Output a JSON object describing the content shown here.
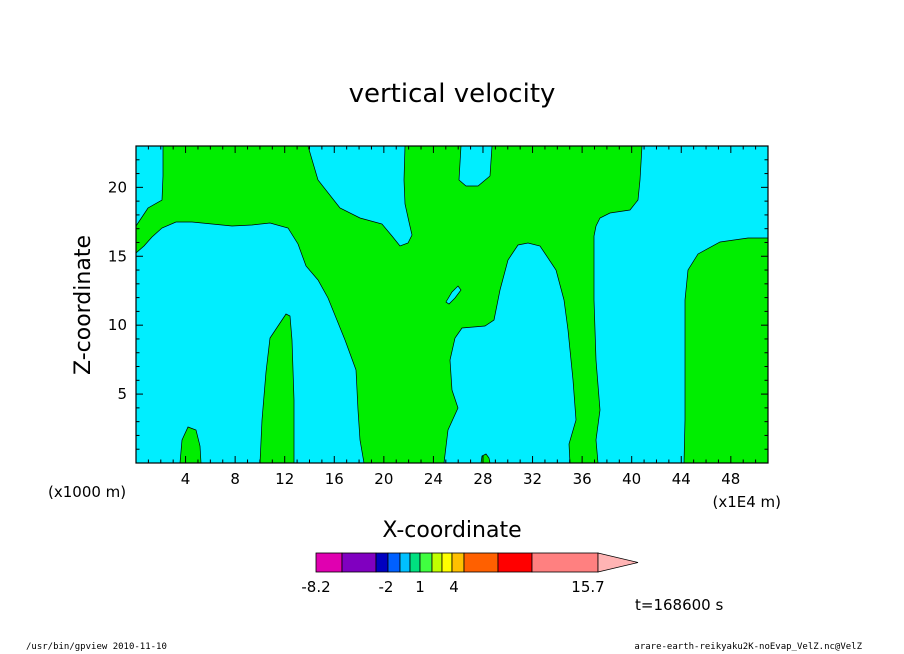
{
  "chart_data": {
    "type": "heatmap",
    "title": "vertical velocity",
    "xlabel": "X-coordinate",
    "ylabel": "Z-coordinate",
    "x_unit_left": "(x1000 m)",
    "x_unit_right": "(x1E4 m)",
    "xlim": [
      0,
      51
    ],
    "ylim": [
      0,
      23
    ],
    "x_ticks": [
      4,
      8,
      12,
      16,
      20,
      24,
      28,
      32,
      36,
      40,
      44,
      48
    ],
    "y_ticks": [
      5,
      10,
      15,
      20
    ],
    "colorbar": {
      "colors": [
        "#e000b0",
        "#8000c0",
        "#0000c0",
        "#0060ff",
        "#00c0ff",
        "#00e080",
        "#40ff40",
        "#c0ff00",
        "#ffff00",
        "#ffc000",
        "#ff6000",
        "#ff0000",
        "#ff8080",
        "#ffb4b4"
      ],
      "tick_labels": [
        "-8.2",
        "-2",
        "1",
        "4",
        "15.7"
      ]
    },
    "regions": {
      "negative": {
        "label": "cyan",
        "color": "#00eeff"
      },
      "positive": {
        "label": "green",
        "color": "#00ee00"
      }
    },
    "time_label": "t=168600 s"
  },
  "footer": {
    "left": "/usr/bin/gpview  2010-11-10",
    "right": "arare-earth-reikyaku2K-noEvap_VelZ.nc@VelZ"
  }
}
